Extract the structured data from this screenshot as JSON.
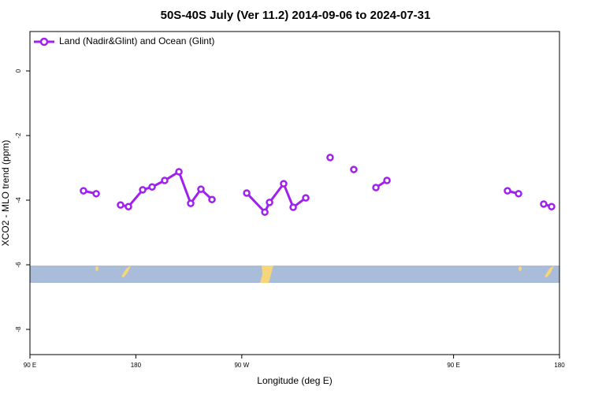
{
  "chart_data": {
    "type": "line",
    "title": "50S-40S July (Ver 11.2)   2014-09-06 to 2024-07-31",
    "xlabel": "Longitude (deg E)",
    "ylabel": "XCO2 - MLO trend (ppm)",
    "xlim": [
      90,
      540
    ],
    "xticks": [
      {
        "value": 90,
        "label": "90 E"
      },
      {
        "value": 180,
        "label": "180"
      },
      {
        "value": 270,
        "label": "90 W"
      },
      {
        "value": 450,
        "label": "90 E"
      },
      {
        "value": 540,
        "label": "180"
      }
    ],
    "ylim": [
      -8.78,
      1.22
    ],
    "yticks": [
      0,
      -2,
      -4,
      -6,
      -8
    ],
    "legend": "top-left",
    "series": [
      {
        "name": "Land (Nadir&Glint) and Ocean (Glint)",
        "color": "#a020f0",
        "x": [
          135.5,
          146.3,
          null,
          167.0,
          173.7,
          185.8,
          193.8,
          204.5,
          216.6,
          226.6,
          235.3,
          244.7,
          null,
          274.2,
          289.6,
          293.6,
          305.6,
          313.7,
          324.4,
          null,
          345.1,
          null,
          365.2,
          null,
          384.0,
          393.4,
          null,
          495.8,
          505.2,
          null,
          526.6,
          533.3
        ],
        "values": [
          -3.71,
          -3.8,
          null,
          -4.15,
          -4.2,
          -3.68,
          -3.59,
          -3.39,
          -3.12,
          -4.1,
          -3.66,
          -3.98,
          null,
          -3.78,
          -4.37,
          -4.07,
          -3.49,
          -4.22,
          -3.93,
          null,
          -2.68,
          null,
          -3.05,
          null,
          -3.61,
          -3.39,
          null,
          -3.71,
          -3.8,
          null,
          -4.12,
          -4.2
        ]
      }
    ]
  }
}
